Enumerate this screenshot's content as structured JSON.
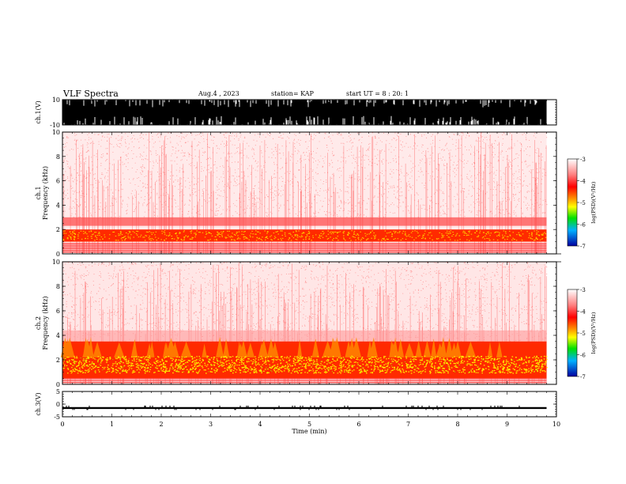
{
  "header": {
    "title": "VLF Spectra",
    "date": "Aug.4 , 2023",
    "station": "station= KAP",
    "start": "start UT = 8 : 20: 1"
  },
  "chart_data": [
    {
      "type": "line",
      "name_panel": "ch1-waveform",
      "ylabel": "ch.1(V)",
      "ylim": [
        -10,
        10
      ],
      "yticks": [
        "10",
        "-10"
      ],
      "xlim": [
        0,
        10
      ],
      "grid": false
    },
    {
      "type": "heatmap",
      "name_panel": "ch1-spectrogram",
      "ylabel": "ch.1\nFrequency (kHz)",
      "ylim": [
        0,
        10
      ],
      "yticks": [
        "0",
        "2",
        "4",
        "6",
        "8",
        "10"
      ],
      "xlim": [
        0,
        10
      ],
      "colorbar": {
        "label": "log(PSD)(V²/Hz)",
        "ticks": [
          "-3",
          "-4",
          "-5",
          "-6",
          "-7"
        ],
        "range": [
          -7,
          -3
        ]
      },
      "bands_khz": [
        [
          1.0,
          2.0,
          "yellow-red"
        ],
        [
          2.0,
          3.0,
          "red"
        ],
        [
          0.0,
          1.0,
          "red-lines"
        ]
      ]
    },
    {
      "type": "heatmap",
      "name_panel": "ch2-spectrogram",
      "ylabel": "ch.2\nFrequency (kHz)",
      "ylim": [
        0,
        10
      ],
      "yticks": [
        "0",
        "2",
        "4",
        "6",
        "8",
        "10"
      ],
      "xlim": [
        0,
        10
      ],
      "colorbar": {
        "label": "log(PSD)(V²/Hz)",
        "ticks": [
          "-3",
          "-4",
          "-5",
          "-6",
          "-7"
        ],
        "range": [
          -7,
          -3
        ]
      },
      "bands_khz": [
        [
          0.8,
          2.4,
          "yellow"
        ],
        [
          0.5,
          3.5,
          "red"
        ],
        [
          3.5,
          4.5,
          "red-light"
        ]
      ]
    },
    {
      "type": "line",
      "name_panel": "ch3-waveform",
      "ylabel": "ch.3(V)",
      "ylim": [
        -5,
        5
      ],
      "yticks": [
        "5",
        "0",
        "-5"
      ],
      "xlim": [
        0,
        10
      ],
      "xlabel": "Time (min)",
      "xticks": [
        "0",
        "1",
        "2",
        "3",
        "4",
        "5",
        "6",
        "7",
        "8",
        "9",
        "10"
      ],
      "data_end_min": 9.8,
      "grid": false
    }
  ]
}
